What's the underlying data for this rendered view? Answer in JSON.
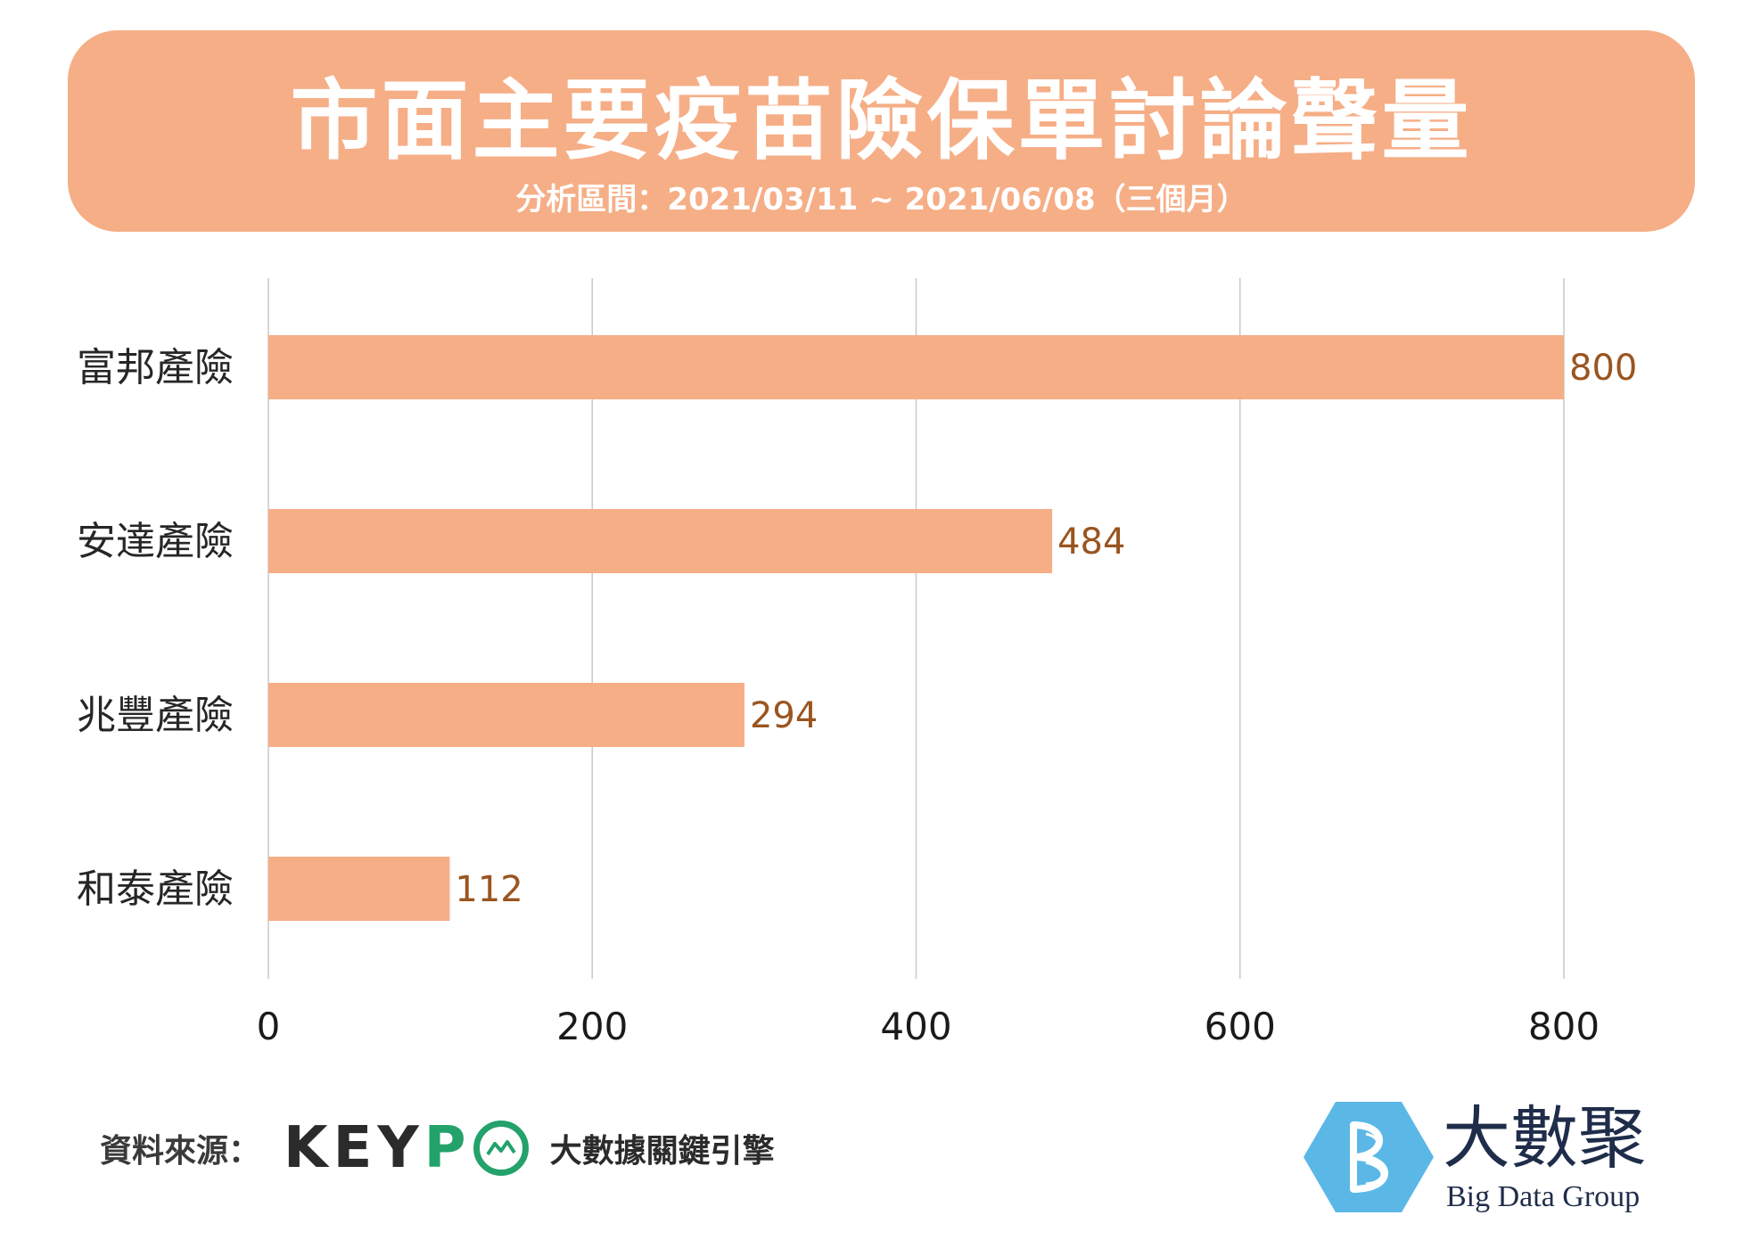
{
  "header": {
    "title": "市面主要疫苗險保單討論聲量",
    "subtitle": "分析區間：2021/03/11 ~ 2021/06/08（三個月）",
    "background_color": "#f6ae86"
  },
  "chart_data": {
    "type": "bar",
    "orientation": "horizontal",
    "categories": [
      "富邦產險",
      "安達產險",
      "兆豐產險",
      "和泰產險"
    ],
    "values": [
      800,
      484,
      294,
      112
    ],
    "xlim": [
      0,
      800
    ],
    "x_ticks": [
      0,
      200,
      400,
      600,
      800
    ],
    "grid": true,
    "bar_color": "#f6ae86",
    "value_label_color": "#9a5520"
  },
  "footer": {
    "source_label": "資料來源：",
    "keypo_logo_text": "KEYPO",
    "keypo_tagline": "大數據關鍵引擎",
    "brand_name": "大數聚",
    "brand_sub": "Big Data Group",
    "brand_color": "#5bb8e6"
  }
}
